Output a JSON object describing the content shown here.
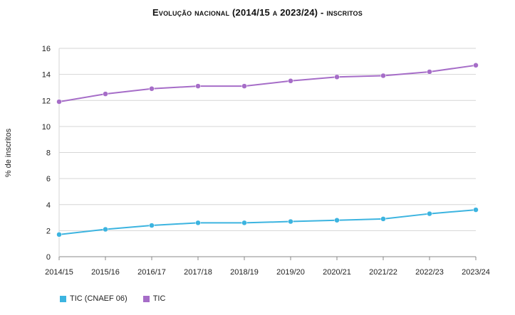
{
  "chart_data": {
    "type": "line",
    "title": "Evolução nacional (2014/15 a 2023/24) - inscritos",
    "xlabel": "",
    "ylabel": "% de inscritos",
    "categories": [
      "2014/15",
      "2015/16",
      "2016/17",
      "2017/18",
      "2018/19",
      "2019/20",
      "2020/21",
      "2021/22",
      "2022/23",
      "2023/24"
    ],
    "ylim": [
      0,
      16
    ],
    "yticks": [
      0,
      2,
      4,
      6,
      8,
      10,
      12,
      14,
      16
    ],
    "grid": true,
    "legend_position": "bottom-left",
    "series": [
      {
        "name": "TIC (CNAEF 06)",
        "color": "#3cb4e0",
        "values": [
          1.7,
          2.1,
          2.4,
          2.6,
          2.6,
          2.7,
          2.8,
          2.9,
          3.3,
          3.6
        ]
      },
      {
        "name": "TIC",
        "color": "#a66dc8",
        "values": [
          11.9,
          12.5,
          12.9,
          13.1,
          13.1,
          13.5,
          13.8,
          13.9,
          14.2,
          14.7
        ]
      }
    ]
  }
}
